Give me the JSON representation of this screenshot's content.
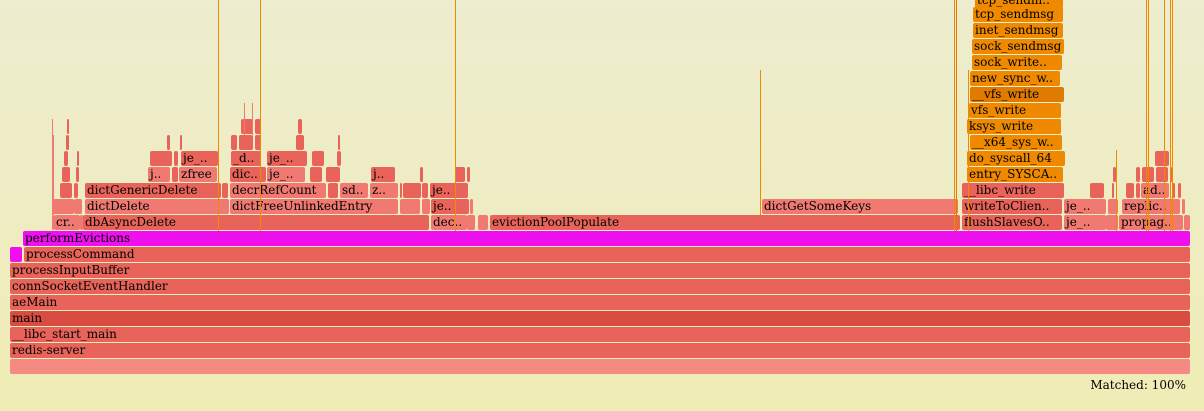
{
  "title": "",
  "matched": "Matched: 100%",
  "colors": {
    "red": "#e8645a",
    "red_light": "#f07a72",
    "red_dark": "#d84c42",
    "pink": "#f58a82",
    "magenta": "#ee10ee",
    "orange": "#ef8a00",
    "orange_dark": "#e07a00"
  },
  "frames": [
    {
      "label": "",
      "c": "pink"
    },
    {
      "label": "redis-server",
      "c": "red"
    },
    {
      "label": "__libc_start_main",
      "c": "red"
    },
    {
      "label": "main",
      "c": "red_dark"
    },
    {
      "label": "aeMain",
      "c": "red"
    },
    {
      "label": "connSocketEventHandler",
      "c": "red"
    },
    {
      "label": "processInputBuffer",
      "c": "red"
    },
    {
      "label": "processCommand",
      "c": "red"
    },
    {
      "label": "",
      "c": "magenta"
    },
    {
      "label": "performEvictions",
      "c": "magenta"
    },
    {
      "label": "cr..",
      "c": "red_light"
    },
    {
      "label": "dbAsyncDelete",
      "c": "red"
    },
    {
      "label": "dec..",
      "c": "red_light"
    },
    {
      "label": "evictionPoolPopulate",
      "c": "red"
    },
    {
      "label": "flushSlavesO..",
      "c": "red"
    },
    {
      "label": "je_..",
      "c": "red_light"
    },
    {
      "label": "propag..",
      "c": "red_light"
    },
    {
      "label": "dictDelete",
      "c": "red_light"
    },
    {
      "label": "dictFreeUnlinkedEntry",
      "c": "red_light"
    },
    {
      "label": "je..",
      "c": "red"
    },
    {
      "label": "dictGetSomeKeys",
      "c": "red_light"
    },
    {
      "label": "writeToClien..",
      "c": "red"
    },
    {
      "label": "je_..",
      "c": "red_light"
    },
    {
      "label": "replic..",
      "c": "red_light"
    },
    {
      "label": "dictGenericDelete",
      "c": "red"
    },
    {
      "label": "decrRefCount",
      "c": "red_light"
    },
    {
      "label": "sd..",
      "c": "red_light"
    },
    {
      "label": "z..",
      "c": "red_light"
    },
    {
      "label": "je..",
      "c": "red"
    },
    {
      "label": "__libc_write",
      "c": "red"
    },
    {
      "label": "ad..",
      "c": "red_light"
    },
    {
      "label": "j..",
      "c": "red_light"
    },
    {
      "label": "zfree",
      "c": "red_light"
    },
    {
      "label": "dic..",
      "c": "red"
    },
    {
      "label": "je_..",
      "c": "red_light"
    },
    {
      "label": "j..",
      "c": "red"
    },
    {
      "label": "entry_SYSCA..",
      "c": "orange"
    },
    {
      "label": "je_..",
      "c": "red"
    },
    {
      "label": "_d..",
      "c": "red"
    },
    {
      "label": "je_..",
      "c": "red"
    },
    {
      "label": "do_syscall_64",
      "c": "orange"
    },
    {
      "label": "__x64_sys_w..",
      "c": "orange"
    },
    {
      "label": "ksys_write",
      "c": "orange"
    },
    {
      "label": "vfs_write",
      "c": "orange"
    },
    {
      "label": "__vfs_write",
      "c": "orange_dark"
    },
    {
      "label": "new_sync_w..",
      "c": "orange"
    },
    {
      "label": "sock_write..",
      "c": "orange"
    },
    {
      "label": "sock_sendmsg",
      "c": "orange"
    },
    {
      "label": "inet_sendmsg",
      "c": "orange"
    },
    {
      "label": "tcp_sendmsg",
      "c": "orange"
    },
    {
      "label": "tcp_sendm..",
      "c": "orange"
    }
  ]
}
